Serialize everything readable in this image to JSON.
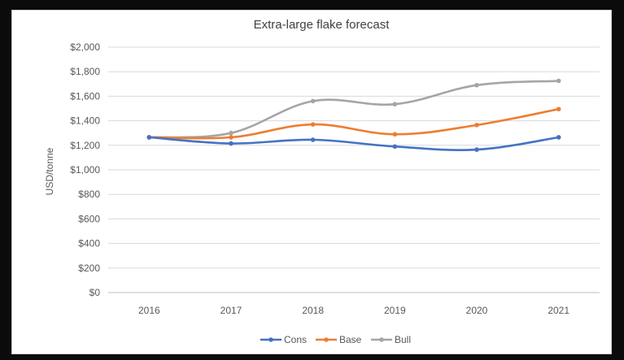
{
  "chart_data": {
    "type": "line",
    "title": "Extra-large flake forecast",
    "xlabel": "",
    "ylabel": "USD/tonne",
    "categories": [
      "2016",
      "2017",
      "2018",
      "2019",
      "2020",
      "2021"
    ],
    "ylim": [
      0,
      2000
    ],
    "yticks": [
      "$0",
      "$200",
      "$400",
      "$600",
      "$800",
      "$1,000",
      "$1,200",
      "$1,400",
      "$1,600",
      "$1,800",
      "$2,000"
    ],
    "grid": true,
    "legend_position": "bottom",
    "series": [
      {
        "name": "Cons",
        "color": "#4472C4",
        "values": [
          1265,
          1215,
          1245,
          1190,
          1165,
          1265
        ]
      },
      {
        "name": "Base",
        "color": "#ED7D31",
        "values": [
          1265,
          1265,
          1370,
          1290,
          1365,
          1495
        ]
      },
      {
        "name": "Bull",
        "color": "#A5A5A5",
        "values": [
          1265,
          1300,
          1560,
          1535,
          1690,
          1725
        ]
      }
    ]
  }
}
